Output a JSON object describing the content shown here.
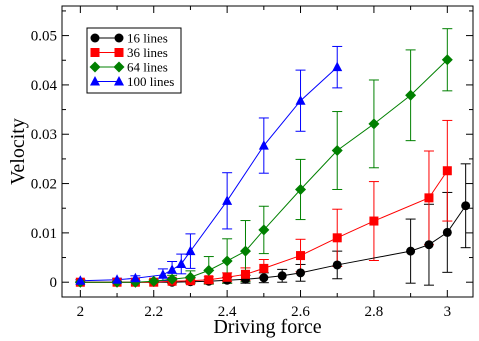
{
  "chart_data": {
    "type": "line",
    "title": "",
    "xlabel": "Driving force",
    "ylabel": "Velocity",
    "xlim": [
      1.95,
      3.07
    ],
    "ylim": [
      -0.003,
      0.056
    ],
    "xticks": [
      2,
      2.2,
      2.4,
      2.6,
      2.8,
      3
    ],
    "xtick_labels": [
      "2",
      "2.2",
      "2.4",
      "2.6",
      "2.8",
      "3"
    ],
    "yticks": [
      0,
      0.01,
      0.02,
      0.03,
      0.04,
      0.05
    ],
    "ytick_labels": [
      "0",
      "0.01",
      "0.02",
      "0.03",
      "0.04",
      "0.05"
    ],
    "grid": false,
    "legend": "top-left",
    "series": [
      {
        "name": "16 lines",
        "color": "#000000",
        "marker": "circle",
        "x": [
          2.0,
          2.1,
          2.15,
          2.2,
          2.25,
          2.3,
          2.35,
          2.4,
          2.45,
          2.5,
          2.55,
          2.6,
          2.7,
          2.9,
          2.95,
          3.0,
          3.05
        ],
        "y": [
          0.0,
          0.0,
          0.0,
          0.0,
          0.0,
          0.0001,
          0.0002,
          0.0004,
          0.0006,
          0.0009,
          0.0013,
          0.0019,
          0.0035,
          0.0063,
          0.0076,
          0.0101,
          0.0155
        ],
        "err": [
          0.0,
          0.0,
          0.0,
          0.0,
          0.0,
          0.0002,
          0.0004,
          0.0006,
          0.0008,
          0.001,
          0.0013,
          0.0017,
          0.0028,
          0.0065,
          0.0082,
          0.0081,
          0.0085
        ]
      },
      {
        "name": "36 lines",
        "color": "#ff0000",
        "marker": "square",
        "x": [
          2.0,
          2.1,
          2.15,
          2.2,
          2.25,
          2.3,
          2.35,
          2.4,
          2.45,
          2.5,
          2.6,
          2.7,
          2.8,
          2.95,
          3.0
        ],
        "y": [
          0.0,
          0.0,
          0.0,
          0.0,
          0.0002,
          0.0003,
          0.0005,
          0.001,
          0.0016,
          0.0028,
          0.0054,
          0.009,
          0.0124,
          0.0171,
          0.0226
        ],
        "err": [
          0.0,
          0.0,
          0.0,
          0.0,
          0.0002,
          0.0004,
          0.0006,
          0.0009,
          0.0013,
          0.0018,
          0.0033,
          0.0058,
          0.008,
          0.0095,
          0.0102
        ]
      },
      {
        "name": "64 lines",
        "color": "#008000",
        "marker": "diamond",
        "x": [
          2.0,
          2.1,
          2.15,
          2.2,
          2.25,
          2.3,
          2.35,
          2.4,
          2.45,
          2.5,
          2.6,
          2.7,
          2.8,
          2.9,
          3.0
        ],
        "y": [
          0.0,
          0.0,
          0.0,
          0.0002,
          0.0006,
          0.001,
          0.0024,
          0.0043,
          0.0063,
          0.0106,
          0.0188,
          0.0267,
          0.0321,
          0.0379,
          0.0451
        ],
        "err": [
          0.0,
          0.0,
          0.0,
          0.0003,
          0.0008,
          0.0013,
          0.0028,
          0.0045,
          0.0062,
          0.0048,
          0.0061,
          0.0079,
          0.0089,
          0.0092,
          0.0063
        ]
      },
      {
        "name": "100 lines",
        "color": "#0000ff",
        "marker": "triangle",
        "x": [
          2.0,
          2.1,
          2.15,
          2.225,
          2.25,
          2.275,
          2.3,
          2.4,
          2.5,
          2.6,
          2.7
        ],
        "y": [
          0.0003,
          0.0005,
          0.0008,
          0.0015,
          0.0025,
          0.0037,
          0.0063,
          0.0165,
          0.0277,
          0.0368,
          0.0436
        ],
        "err": [
          0.0002,
          0.0003,
          0.0005,
          0.0012,
          0.0017,
          0.002,
          0.0035,
          0.0057,
          0.0056,
          0.0062,
          0.0042
        ]
      }
    ]
  }
}
